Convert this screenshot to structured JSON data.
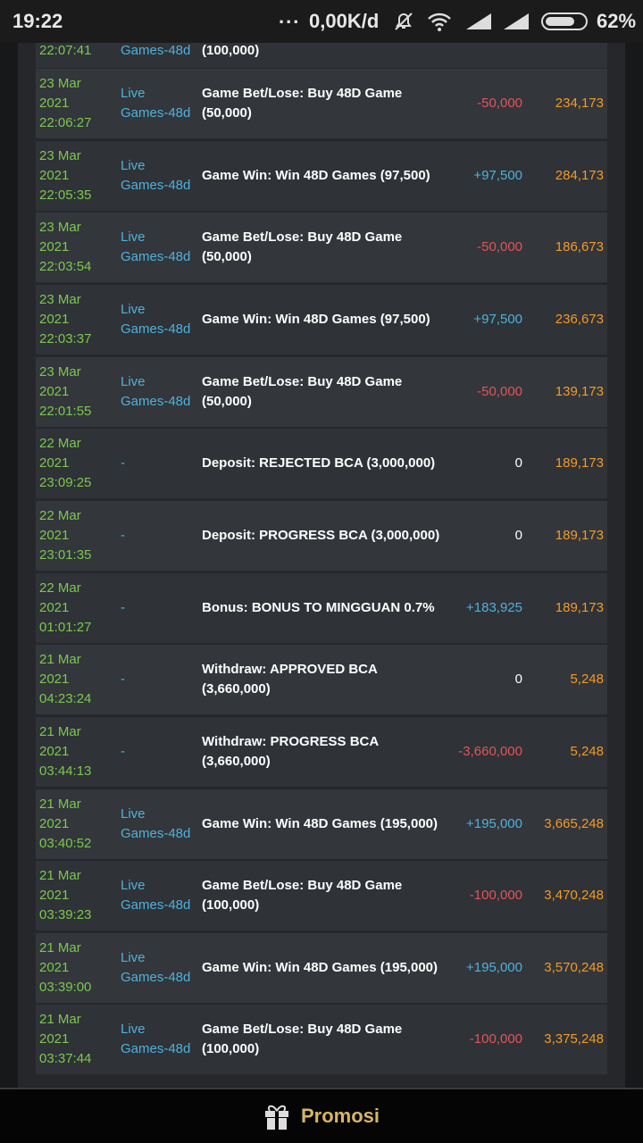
{
  "status_bar": {
    "time": "19:22",
    "speed": "0,00K/d",
    "battery": "62%"
  },
  "partial_row": {
    "date": [
      "22:07:41"
    ],
    "game": [
      "Games-48d"
    ],
    "description": [
      "(100,000)"
    ]
  },
  "rows": [
    {
      "date": [
        "23 Mar",
        "2021",
        "22:06:27"
      ],
      "game": [
        "Live",
        "Games-48d"
      ],
      "description": [
        "Game Bet/Lose: Buy 48D Game",
        "(50,000)"
      ],
      "amount": "-50,000",
      "balance": "234,173"
    },
    {
      "date": [
        "23 Mar",
        "2021",
        "22:05:35"
      ],
      "game": [
        "Live",
        "Games-48d"
      ],
      "description": [
        "Game Win: Win 48D Games (97,500)"
      ],
      "amount": "+97,500",
      "balance": "284,173"
    },
    {
      "date": [
        "23 Mar",
        "2021",
        "22:03:54"
      ],
      "game": [
        "Live",
        "Games-48d"
      ],
      "description": [
        "Game Bet/Lose: Buy 48D Game",
        "(50,000)"
      ],
      "amount": "-50,000",
      "balance": "186,673"
    },
    {
      "date": [
        "23 Mar",
        "2021",
        "22:03:37"
      ],
      "game": [
        "Live",
        "Games-48d"
      ],
      "description": [
        "Game Win: Win 48D Games (97,500)"
      ],
      "amount": "+97,500",
      "balance": "236,673"
    },
    {
      "date": [
        "23 Mar",
        "2021",
        "22:01:55"
      ],
      "game": [
        "Live",
        "Games-48d"
      ],
      "description": [
        "Game Bet/Lose: Buy 48D Game",
        "(50,000)"
      ],
      "amount": "-50,000",
      "balance": "139,173"
    },
    {
      "date": [
        "22 Mar",
        "2021",
        "23:09:25"
      ],
      "game": [
        "-"
      ],
      "description": [
        "Deposit: REJECTED BCA (3,000,000)"
      ],
      "amount": "0",
      "balance": "189,173"
    },
    {
      "date": [
        "22 Mar",
        "2021",
        "23:01:35"
      ],
      "game": [
        "-"
      ],
      "description": [
        "Deposit: PROGRESS BCA (3,000,000)"
      ],
      "amount": "0",
      "balance": "189,173"
    },
    {
      "date": [
        "22 Mar",
        "2021",
        "01:01:27"
      ],
      "game": [
        "-"
      ],
      "description": [
        "Bonus: BONUS TO MINGGUAN 0.7%"
      ],
      "amount": "+183,925",
      "balance": "189,173"
    },
    {
      "date": [
        "21 Mar",
        "2021",
        "04:23:24"
      ],
      "game": [
        "-"
      ],
      "description": [
        "Withdraw: APPROVED BCA",
        "(3,660,000)"
      ],
      "amount": "0",
      "balance": "5,248"
    },
    {
      "date": [
        "21 Mar",
        "2021",
        "03:44:13"
      ],
      "game": [
        "-"
      ],
      "description": [
        "Withdraw: PROGRESS BCA",
        "(3,660,000)"
      ],
      "amount": "-3,660,000",
      "balance": "5,248"
    },
    {
      "date": [
        "21 Mar",
        "2021",
        "03:40:52"
      ],
      "game": [
        "Live",
        "Games-48d"
      ],
      "description": [
        "Game Win: Win 48D Games (195,000)"
      ],
      "amount": "+195,000",
      "balance": "3,665,248"
    },
    {
      "date": [
        "21 Mar",
        "2021",
        "03:39:23"
      ],
      "game": [
        "Live",
        "Games-48d"
      ],
      "description": [
        "Game Bet/Lose: Buy 48D Game",
        "(100,000)"
      ],
      "amount": "-100,000",
      "balance": "3,470,248"
    },
    {
      "date": [
        "21 Mar",
        "2021",
        "03:39:00"
      ],
      "game": [
        "Live",
        "Games-48d"
      ],
      "description": [
        "Game Win: Win 48D Games (195,000)"
      ],
      "amount": "+195,000",
      "balance": "3,570,248"
    },
    {
      "date": [
        "21 Mar",
        "2021",
        "03:37:44"
      ],
      "game": [
        "Live",
        "Games-48d"
      ],
      "description": [
        "Game Bet/Lose: Buy 48D Game",
        "(100,000)"
      ],
      "amount": "-100,000",
      "balance": "3,375,248"
    }
  ],
  "bottom_bar": {
    "label": "Promosi"
  }
}
